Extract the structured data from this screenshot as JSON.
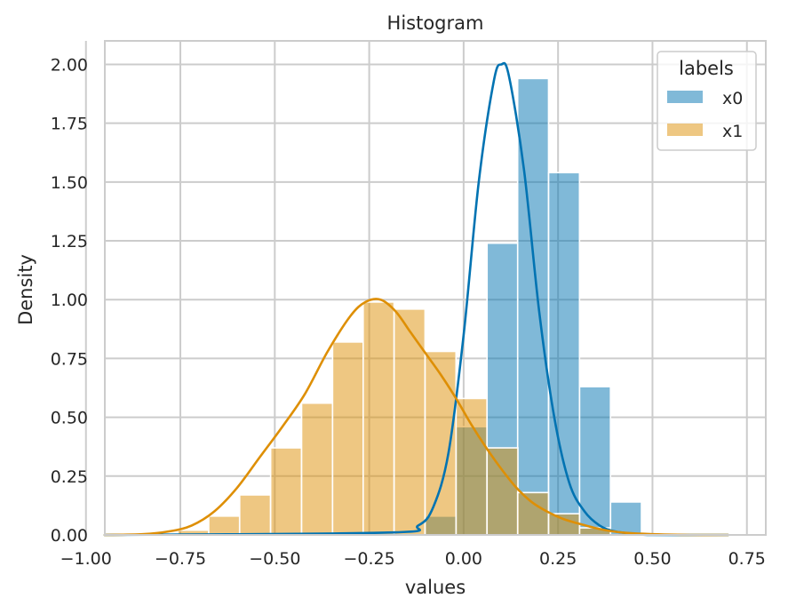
{
  "chart_data": {
    "type": "bar",
    "title": "Histogram",
    "xlabel": "values",
    "ylabel": "Density",
    "xlim": [
      -0.95,
      0.8
    ],
    "ylim": [
      0,
      2.1
    ],
    "xticks": [
      -1.0,
      -0.75,
      -0.5,
      -0.25,
      0.0,
      0.25,
      0.5,
      0.75
    ],
    "xtick_labels": [
      "−1.00",
      "−0.75",
      "−0.50",
      "−0.25",
      "0.00",
      "0.25",
      "0.50",
      "0.75"
    ],
    "yticks": [
      0.0,
      0.25,
      0.5,
      0.75,
      1.0,
      1.25,
      1.5,
      1.75,
      2.0
    ],
    "ytick_labels": [
      "0.00",
      "0.25",
      "0.50",
      "0.75",
      "1.00",
      "1.25",
      "1.50",
      "1.75",
      "2.00"
    ],
    "grid": true,
    "legend": {
      "title": "labels",
      "placement": "top-right"
    },
    "bin_width": 0.0818,
    "series": [
      {
        "name": "x0",
        "color": "#0173b2",
        "bin_starts": [
          -0.92,
          -0.838,
          -0.757,
          -0.675,
          -0.593,
          -0.511,
          -0.429,
          -0.347,
          -0.266,
          -0.184,
          -0.102,
          -0.02,
          0.062,
          0.143,
          0.225,
          0.307,
          0.389,
          0.471,
          0.552,
          0.634
        ],
        "values": [
          0,
          0,
          0,
          0,
          0,
          0,
          0,
          0,
          0,
          0,
          0.08,
          0.46,
          1.24,
          1.94,
          1.54,
          0.63,
          0.14,
          0,
          0,
          0
        ],
        "kde_x": [
          -0.95,
          -0.2,
          -0.12,
          -0.08,
          -0.04,
          0.0,
          0.04,
          0.08,
          0.1,
          0.12,
          0.16,
          0.2,
          0.24,
          0.28,
          0.32,
          0.36,
          0.4,
          0.45,
          0.5,
          0.7
        ],
        "kde_y": [
          0,
          0.01,
          0.04,
          0.12,
          0.35,
          0.85,
          1.5,
          1.93,
          2.0,
          1.95,
          1.55,
          0.95,
          0.5,
          0.22,
          0.1,
          0.04,
          0.015,
          0.005,
          0,
          0
        ]
      },
      {
        "name": "x1",
        "color": "#de8f05",
        "bin_starts": [
          -0.92,
          -0.838,
          -0.757,
          -0.675,
          -0.593,
          -0.511,
          -0.429,
          -0.347,
          -0.266,
          -0.184,
          -0.102,
          -0.02,
          0.062,
          0.143,
          0.225,
          0.307,
          0.389,
          0.471,
          0.552,
          0.634
        ],
        "values": [
          0,
          0,
          0.02,
          0.08,
          0.17,
          0.37,
          0.56,
          0.82,
          0.99,
          0.96,
          0.78,
          0.58,
          0.37,
          0.18,
          0.09,
          0.03,
          0,
          0,
          0,
          0
        ],
        "kde_x": [
          -0.95,
          -0.85,
          -0.78,
          -0.72,
          -0.66,
          -0.6,
          -0.54,
          -0.48,
          -0.42,
          -0.36,
          -0.3,
          -0.26,
          -0.22,
          -0.18,
          -0.14,
          -0.1,
          -0.06,
          -0.02,
          0.02,
          0.06,
          0.1,
          0.14,
          0.18,
          0.22,
          0.26,
          0.3,
          0.36,
          0.42,
          0.5,
          0.6,
          0.7
        ],
        "kde_y": [
          0,
          0.003,
          0.015,
          0.04,
          0.1,
          0.2,
          0.33,
          0.46,
          0.6,
          0.78,
          0.93,
          0.99,
          1.0,
          0.95,
          0.86,
          0.77,
          0.68,
          0.58,
          0.47,
          0.37,
          0.28,
          0.2,
          0.14,
          0.1,
          0.07,
          0.05,
          0.025,
          0.01,
          0.003,
          0,
          0
        ]
      }
    ]
  }
}
